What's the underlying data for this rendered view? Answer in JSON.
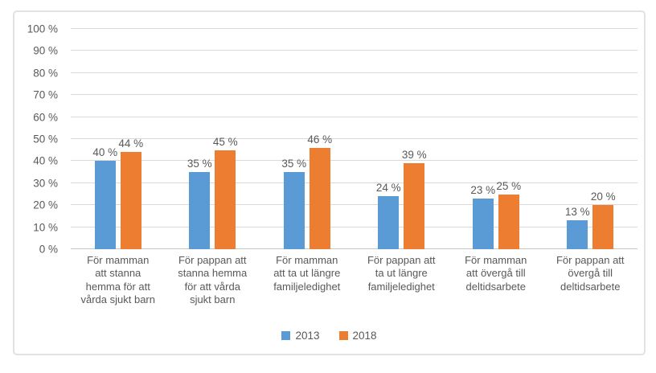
{
  "chart_data": {
    "type": "bar",
    "title": "",
    "categories": [
      "För mamman\natt stanna\nhemma för att\nvårda sjukt barn",
      "För pappan att\nstanna hemma\nför att vårda\nsjukt barn",
      "För mamman\natt ta ut längre\nfamiljeledighet",
      "För pappan att\nta ut längre\nfamiljeledighet",
      "För mamman\natt övergå till\ndeltidsarbete",
      "För pappan att\növergå till\ndeltidsarbete"
    ],
    "series": [
      {
        "name": "2013",
        "color": "#5B9BD5",
        "values": [
          40,
          35,
          35,
          24,
          23,
          13
        ]
      },
      {
        "name": "2018",
        "color": "#ED7D31",
        "values": [
          44,
          45,
          46,
          39,
          25,
          20
        ]
      }
    ],
    "xlabel": "",
    "ylabel": "",
    "ylim": [
      0,
      100
    ],
    "ytick_values": [
      0,
      10,
      20,
      30,
      40,
      50,
      60,
      70,
      80,
      90,
      100
    ],
    "ytick_labels": [
      "0 %",
      "10 %",
      "20 %",
      "30 %",
      "40 %",
      "50 %",
      "60 %",
      "70 %",
      "80 %",
      "90 %",
      "100 %"
    ],
    "data_label_suffix": " %",
    "grid": true,
    "legend_position": "bottom"
  },
  "colors": {
    "grid": "#D9D9D9",
    "baseline": "#C6C6C6",
    "axis_text": "#595959",
    "frame_border": "#E2E2E2",
    "background": "#FFFFFF",
    "series_2013": "#5B9BD5",
    "series_2018": "#ED7D31"
  }
}
